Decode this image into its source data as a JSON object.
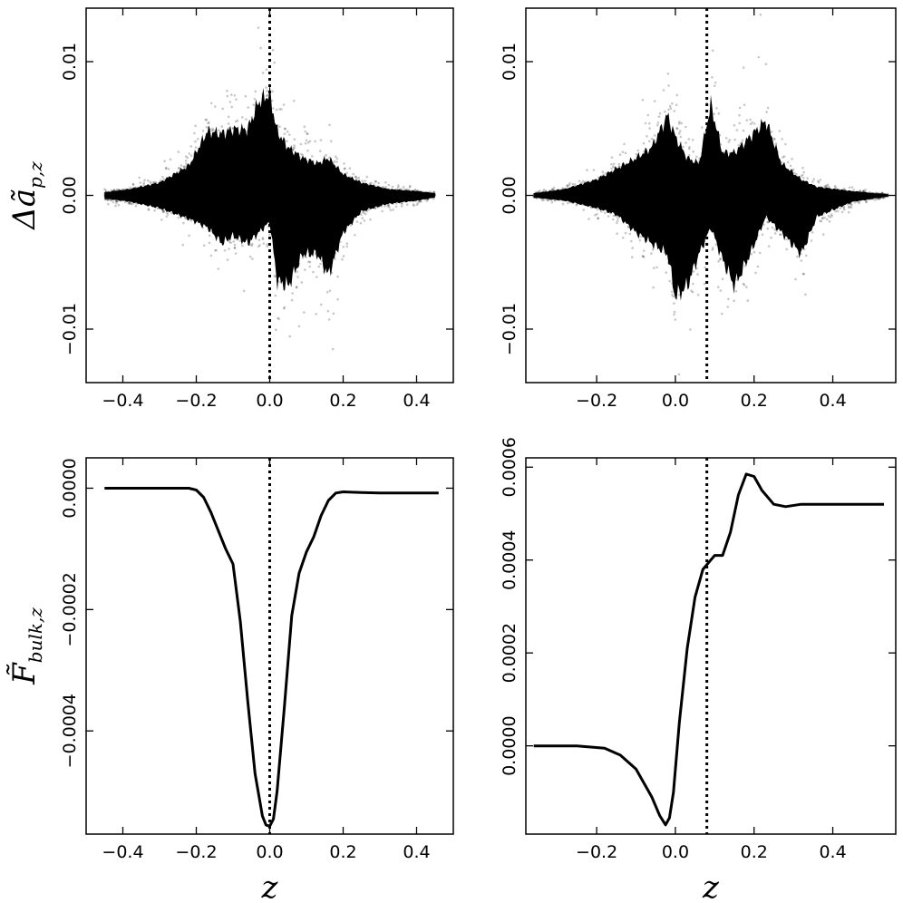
{
  "chart_data": [
    {
      "type": "scatter",
      "position": "top-left",
      "xlim": [
        -0.5,
        0.5
      ],
      "ylim": [
        -0.014,
        0.014
      ],
      "xticks": [
        -0.4,
        -0.2,
        0.0,
        0.2,
        0.4
      ],
      "xtick_labels": [
        "−0.4",
        "−0.2",
        "0.0",
        "0.2",
        "0.4"
      ],
      "yticks": [
        -0.01,
        0.0,
        0.01
      ],
      "ytick_labels": [
        "−0.01",
        "0.00",
        "0.01"
      ],
      "ylabel_base": "Δã",
      "ylabel_sub": "p,z",
      "xlabel": "",
      "vline_x": 0.0,
      "x_range": [
        -0.45,
        0.45
      ],
      "envelope": [
        [
          -0.45,
          0.0003,
          0.0003
        ],
        [
          -0.38,
          0.0006,
          0.0006
        ],
        [
          -0.3,
          0.0012,
          0.0012
        ],
        [
          -0.22,
          0.0022,
          0.0028
        ],
        [
          -0.17,
          0.003,
          0.006
        ],
        [
          -0.13,
          0.0045,
          0.0058
        ],
        [
          -0.1,
          0.0038,
          0.0062
        ],
        [
          -0.06,
          0.0045,
          0.0062
        ],
        [
          -0.03,
          0.0035,
          0.0088
        ],
        [
          0.0,
          0.0025,
          0.0095
        ],
        [
          0.02,
          0.008,
          0.006
        ],
        [
          0.05,
          0.0085,
          0.0045
        ],
        [
          0.09,
          0.0055,
          0.0035
        ],
        [
          0.13,
          0.0055,
          0.003
        ],
        [
          0.16,
          0.0075,
          0.0035
        ],
        [
          0.2,
          0.0035,
          0.002
        ],
        [
          0.25,
          0.0015,
          0.0012
        ],
        [
          0.32,
          0.0008,
          0.0006
        ],
        [
          0.4,
          0.0005,
          0.0004
        ],
        [
          0.45,
          0.0002,
          0.0002
        ]
      ],
      "scatter_color": "#000000"
    },
    {
      "type": "scatter",
      "position": "top-right",
      "xlim": [
        -0.38,
        0.56
      ],
      "ylim": [
        -0.014,
        0.014
      ],
      "xticks": [
        -0.4,
        -0.2,
        0.0,
        0.2,
        0.4
      ],
      "xtick_labels": [
        "−0.4",
        "−0.2",
        "0.0",
        "0.2",
        "0.4"
      ],
      "yticks": [
        -0.01,
        0.0,
        0.01
      ],
      "ytick_labels": [
        "−0.01",
        "0.00",
        "0.01"
      ],
      "xlabel": "",
      "vline_x": 0.08,
      "x_range": [
        -0.36,
        0.54
      ],
      "envelope": [
        [
          -0.36,
          0.0002,
          0.0002
        ],
        [
          -0.28,
          0.0005,
          0.0006
        ],
        [
          -0.2,
          0.0012,
          0.0015
        ],
        [
          -0.15,
          0.0018,
          0.0025
        ],
        [
          -0.1,
          0.0035,
          0.0035
        ],
        [
          -0.06,
          0.0045,
          0.0045
        ],
        [
          -0.02,
          0.0055,
          0.0075
        ],
        [
          0.0,
          0.0095,
          0.0055
        ],
        [
          0.03,
          0.0085,
          0.0035
        ],
        [
          0.06,
          0.0055,
          0.003
        ],
        [
          0.09,
          0.003,
          0.0085
        ],
        [
          0.12,
          0.006,
          0.004
        ],
        [
          0.15,
          0.0085,
          0.004
        ],
        [
          0.19,
          0.0055,
          0.0055
        ],
        [
          0.23,
          0.002,
          0.007
        ],
        [
          0.27,
          0.0035,
          0.003
        ],
        [
          0.32,
          0.0055,
          0.0015
        ],
        [
          0.36,
          0.002,
          0.0008
        ],
        [
          0.45,
          0.0006,
          0.0004
        ],
        [
          0.54,
          0.0001,
          0.0001
        ]
      ],
      "scatter_color": "#000000"
    },
    {
      "type": "line",
      "position": "bottom-left",
      "xlim": [
        -0.5,
        0.5
      ],
      "ylim": [
        -0.00057,
        5e-05
      ],
      "xticks": [
        -0.4,
        -0.2,
        0.0,
        0.2,
        0.4
      ],
      "xtick_labels": [
        "−0.4",
        "−0.2",
        "0.0",
        "0.2",
        "0.4"
      ],
      "yticks": [
        -0.0004,
        -0.0002,
        0.0
      ],
      "ytick_labels": [
        "−0.0004",
        "−0.0002",
        "0.0000"
      ],
      "ylabel_base": "F̃",
      "ylabel_sub": "bulk,z",
      "xlabel": "z",
      "vline_x": 0.0,
      "x": [
        -0.45,
        -0.35,
        -0.28,
        -0.24,
        -0.22,
        -0.2,
        -0.18,
        -0.16,
        -0.14,
        -0.12,
        -0.1,
        -0.08,
        -0.06,
        -0.04,
        -0.02,
        -0.01,
        0.0,
        0.01,
        0.02,
        0.04,
        0.06,
        0.08,
        0.1,
        0.12,
        0.14,
        0.16,
        0.18,
        0.2,
        0.25,
        0.3,
        0.4,
        0.46
      ],
      "y": [
        0.0,
        0.0,
        0.0,
        0.0,
        0.0,
        -3e-06,
        -1.5e-05,
        -4e-05,
        -7e-05,
        -0.0001,
        -0.000125,
        -0.00022,
        -0.00035,
        -0.00047,
        -0.00054,
        -0.000555,
        -0.000557,
        -0.000545,
        -0.0005,
        -0.00036,
        -0.00021,
        -0.00014,
        -0.000105,
        -8e-05,
        -4.5e-05,
        -2e-05,
        -8e-06,
        -6e-06,
        -7e-06,
        -8e-06,
        -8e-06,
        -8e-06
      ],
      "line_color": "#000000"
    },
    {
      "type": "line",
      "position": "bottom-right",
      "xlim": [
        -0.38,
        0.56
      ],
      "ylim": [
        -0.00019,
        0.00062
      ],
      "xticks": [
        -0.4,
        -0.2,
        0.0,
        0.2,
        0.4
      ],
      "xtick_labels": [
        "−0.4",
        "−0.2",
        "0.0",
        "0.2",
        "0.4"
      ],
      "yticks": [
        0.0,
        0.0002,
        0.0004,
        0.0006
      ],
      "ytick_labels": [
        "0.0000",
        "0.0002",
        "0.0004",
        "0.0006"
      ],
      "xlabel": "z",
      "vline_x": 0.08,
      "x": [
        -0.36,
        -0.25,
        -0.18,
        -0.14,
        -0.1,
        -0.08,
        -0.06,
        -0.04,
        -0.025,
        -0.015,
        -0.005,
        0.01,
        0.03,
        0.05,
        0.07,
        0.09,
        0.1,
        0.12,
        0.14,
        0.16,
        0.18,
        0.2,
        0.22,
        0.25,
        0.28,
        0.32,
        0.4,
        0.53
      ],
      "y": [
        0.0,
        0.0,
        -5e-06,
        -2e-05,
        -5e-05,
        -8e-05,
        -0.00011,
        -0.00015,
        -0.00017,
        -0.000155,
        -0.0001,
        5e-05,
        0.00021,
        0.00032,
        0.00038,
        0.0004,
        0.00041,
        0.00041,
        0.00046,
        0.00054,
        0.000585,
        0.00058,
        0.00055,
        0.00052,
        0.000515,
        0.00052,
        0.00052,
        0.00052
      ],
      "line_color": "#000000"
    }
  ]
}
